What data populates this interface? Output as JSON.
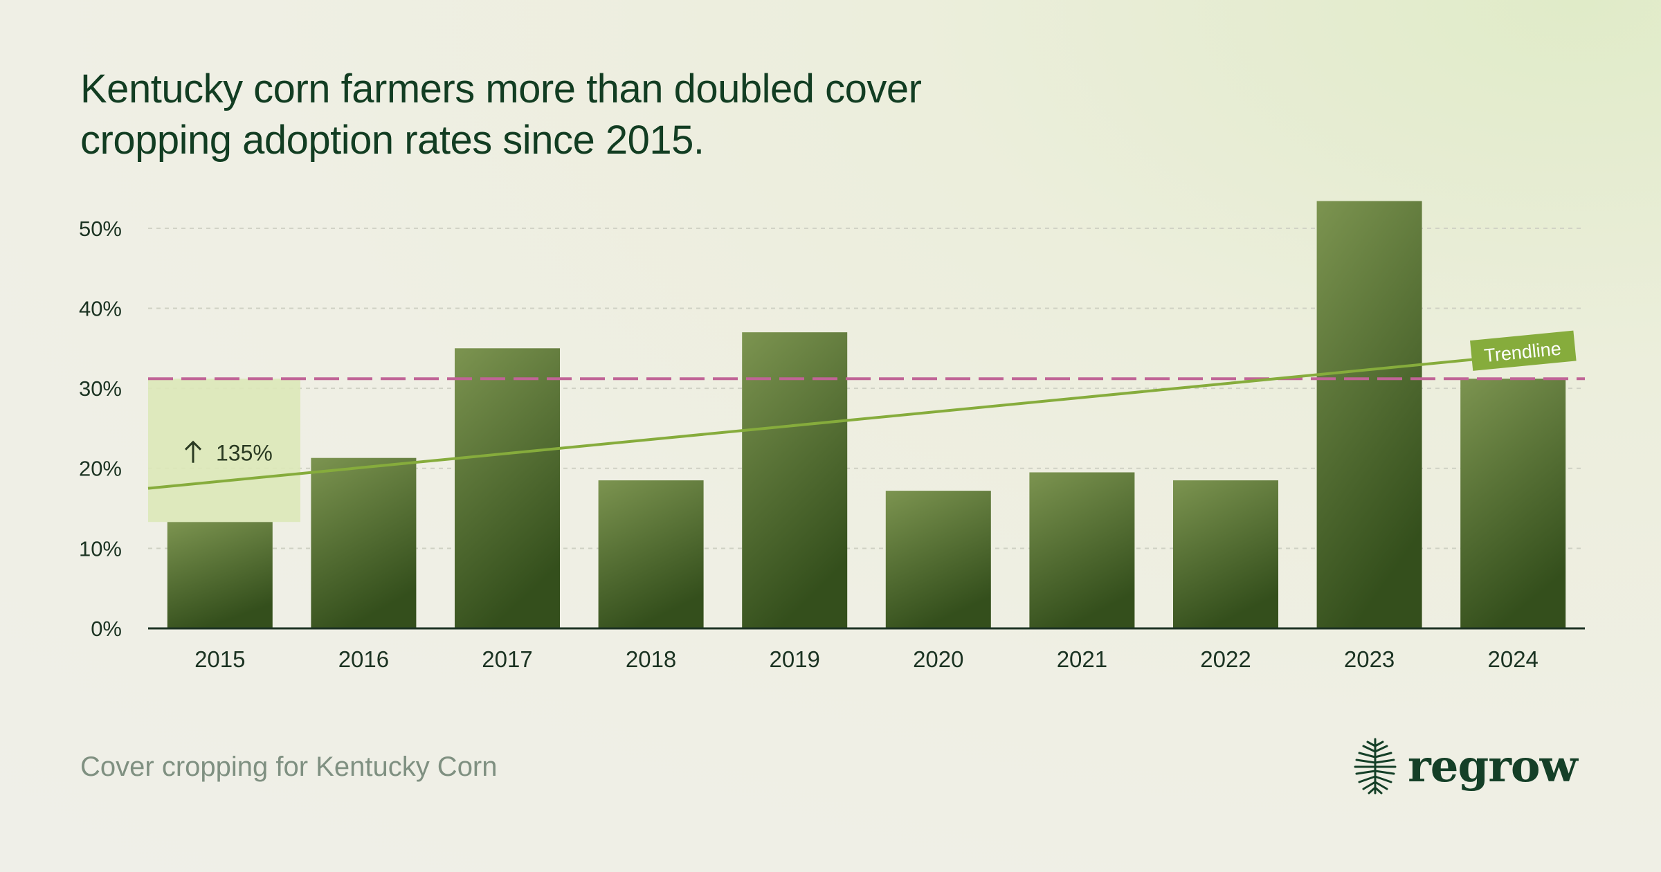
{
  "title_lines": [
    "Kentucky corn farmers more than doubled cover",
    "cropping adoption rates since 2015."
  ],
  "footer_note": "Cover cropping for Kentucky Corn",
  "brand": {
    "name": "regrow",
    "icon": "tree-roots-logo-icon"
  },
  "colors": {
    "bar_light": "#7c9450",
    "bar_dark": "#344f1c",
    "trend": "#86ac3c",
    "reference_line": "#c06496",
    "highlight_box": "#dbe8b8",
    "text_dark": "#123d22"
  },
  "chart_data": {
    "type": "bar",
    "categories": [
      "2015",
      "2016",
      "2017",
      "2018",
      "2019",
      "2020",
      "2021",
      "2022",
      "2023",
      "2024"
    ],
    "values": [
      13.3,
      21.3,
      35,
      18.5,
      37,
      17.2,
      19.5,
      18.5,
      53.4,
      31.2
    ],
    "ylim": [
      0,
      55
    ],
    "yticks": [
      "0%",
      "10%",
      "20%",
      "30%",
      "40%",
      "50%"
    ],
    "ytick_values": [
      0,
      10,
      20,
      30,
      40,
      50
    ],
    "grid": true,
    "trendline": {
      "label": "Trendline",
      "start": 17.5,
      "end": 34.2
    },
    "reference_line": {
      "value": 31.2,
      "style": "dashed"
    },
    "annotation": {
      "text": "135%",
      "icon": "up-arrow-icon",
      "range": [
        13.3,
        31.2
      ]
    }
  }
}
